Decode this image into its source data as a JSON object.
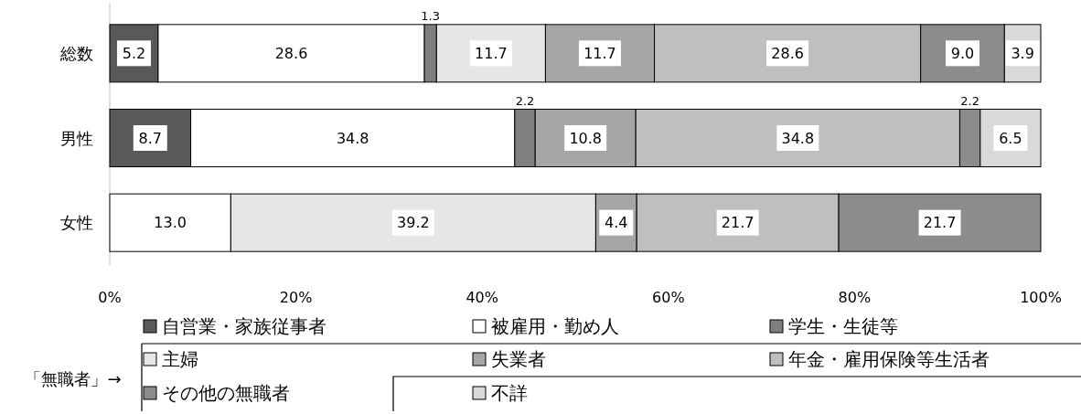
{
  "chart_data": {
    "type": "bar",
    "orientation": "horizontal",
    "stacked": true,
    "legend": "bottom",
    "grid": false,
    "categories": [
      "総数",
      "男性",
      "女性"
    ],
    "xlim": [
      0,
      100
    ],
    "xticks": [
      {
        "value": 0,
        "label": "0%"
      },
      {
        "value": 20,
        "label": "20%"
      },
      {
        "value": 40,
        "label": "40%"
      },
      {
        "value": 60,
        "label": "60%"
      },
      {
        "value": 80,
        "label": "80%"
      },
      {
        "value": 100,
        "label": "100%"
      }
    ],
    "series": [
      {
        "name": "自営業・家族従事者",
        "color": "#595959",
        "values": [
          5.2,
          8.7,
          null
        ],
        "value_labels": [
          "5.2",
          "8.7",
          null
        ]
      },
      {
        "name": "被雇用・勤め人",
        "color": "#ffffff",
        "values": [
          28.6,
          34.8,
          13.0
        ],
        "value_labels": [
          "28.6",
          "34.8",
          "13.0"
        ]
      },
      {
        "name": "学生・生徒等",
        "color": "#7f7f7f",
        "values": [
          1.3,
          2.2,
          null
        ],
        "value_labels": [
          "1.3",
          "2.2",
          null
        ]
      },
      {
        "name": "主婦",
        "color": "#e6e6e6",
        "values": [
          11.7,
          null,
          39.2
        ],
        "value_labels": [
          "11.7",
          null,
          "39.2"
        ]
      },
      {
        "name": "失業者",
        "color": "#a6a6a6",
        "values": [
          11.7,
          10.8,
          4.4
        ],
        "value_labels": [
          "11.7",
          "10.8",
          "4.4"
        ]
      },
      {
        "name": "年金・雇用保険等生活者",
        "color": "#bfbfbf",
        "values": [
          28.6,
          34.8,
          21.7
        ],
        "value_labels": [
          "28.6",
          "34.8",
          "21.7"
        ]
      },
      {
        "name": "その他の無職者",
        "color": "#8c8c8c",
        "values": [
          9.0,
          2.2,
          21.7
        ],
        "value_labels": [
          "9.0",
          "2.2",
          "21.7"
        ]
      },
      {
        "name": "不詳",
        "color": "#d9d9d9",
        "values": [
          3.9,
          6.5,
          null
        ],
        "value_labels": [
          "3.9",
          "6.5",
          null
        ]
      }
    ],
    "annotations": [
      "「無職者」→"
    ]
  }
}
